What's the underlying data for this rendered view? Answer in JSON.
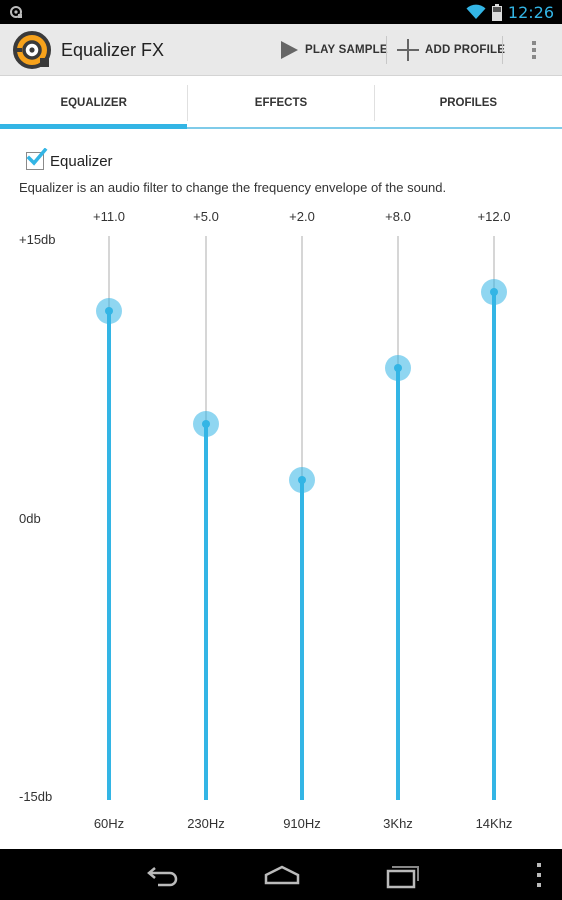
{
  "status_bar": {
    "time": "12:26"
  },
  "action_bar": {
    "title": "Equalizer FX",
    "play_label": "PLAY SAMPLE",
    "add_label": "ADD PROFILE"
  },
  "tabs": [
    {
      "label": "EQUALIZER",
      "active": true
    },
    {
      "label": "EFFECTS",
      "active": false
    },
    {
      "label": "PROFILES",
      "active": false
    }
  ],
  "equalizer": {
    "toggle_label": "Equalizer",
    "checked": true,
    "description": "Equalizer is an audio filter to change the frequency envelope of the sound.",
    "db_max_label": "+15db",
    "db_mid_label": "0db",
    "db_min_label": "-15db",
    "range": [
      -15,
      15
    ],
    "bands": [
      {
        "freq": "60Hz",
        "value_label": "+11.0",
        "value": 11.0
      },
      {
        "freq": "230Hz",
        "value_label": "+5.0",
        "value": 5.0
      },
      {
        "freq": "910Hz",
        "value_label": "+2.0",
        "value": 2.0
      },
      {
        "freq": "3Khz",
        "value_label": "+8.0",
        "value": 8.0
      },
      {
        "freq": "14Khz",
        "value_label": "+12.0",
        "value": 12.0
      }
    ]
  },
  "colors": {
    "accent": "#33b5e5",
    "accent_light": "#7fcbe9"
  },
  "icons": {
    "status_app": "equalizer-app-icon",
    "wifi": "wifi-icon",
    "battery": "battery-icon",
    "play": "play-icon",
    "add": "plus-icon",
    "overflow": "overflow-menu-icon",
    "back": "back-icon",
    "home": "home-icon",
    "recent": "recent-apps-icon",
    "menu": "menu-icon"
  }
}
